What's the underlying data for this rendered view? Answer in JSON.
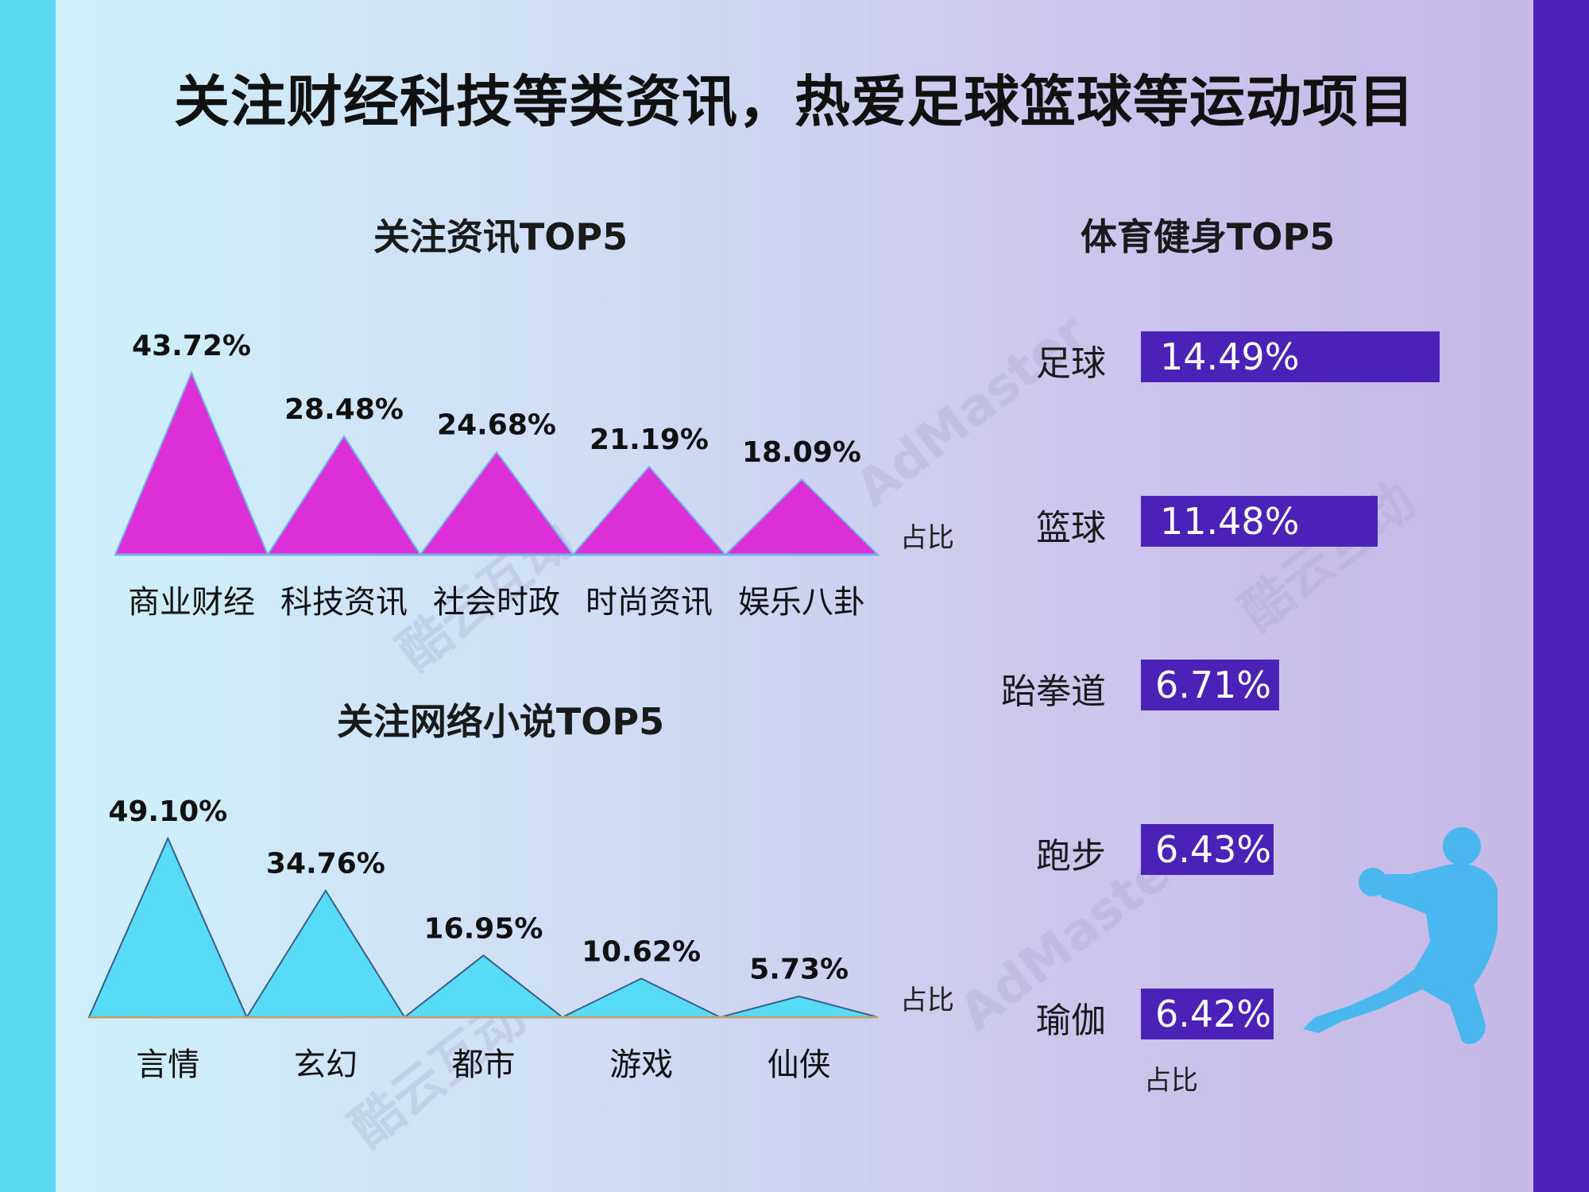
{
  "page": {
    "title": "关注财经科技等类资讯，热爱足球篮球等运动项目",
    "colors": {
      "news_fill": "#dd2fd8",
      "novel_fill": "#58dbf6",
      "sports_bar": "#4a22b8",
      "accent_left": "#5ad9f5",
      "accent_right": "#4a22b8"
    }
  },
  "watermarks": {
    "brand_cn": "酷云互动",
    "brand_en": "AdMaster"
  },
  "sports": {
    "title": "体育健身TOP5",
    "unit": "占比",
    "items": [
      {
        "label": "足球",
        "display": "14.49%",
        "value": 14.49
      },
      {
        "label": "篮球",
        "display": "11.48%",
        "value": 11.48
      },
      {
        "label": "跆拳道",
        "display": "6.71%",
        "value": 6.71
      },
      {
        "label": "跑步",
        "display": "6.43%",
        "value": 6.43
      },
      {
        "label": "瑜伽",
        "display": "6.42%",
        "value": 6.42
      }
    ]
  },
  "chart_data": [
    {
      "type": "bar",
      "title": "关注资讯TOP5",
      "unit_label": "占比",
      "categories": [
        "商业财经",
        "科技资讯",
        "社会时政",
        "时尚资讯",
        "娱乐八卦"
      ],
      "values": [
        43.72,
        28.48,
        24.68,
        21.19,
        18.09
      ],
      "value_labels": [
        "43.72%",
        "28.48%",
        "24.68%",
        "21.19%",
        "18.09%"
      ],
      "ylim": [
        0,
        50
      ]
    },
    {
      "type": "bar",
      "title": "关注网络小说TOP5",
      "unit_label": "占比",
      "categories": [
        "言情",
        "玄幻",
        "都市",
        "游戏",
        "仙侠"
      ],
      "values": [
        49.1,
        34.76,
        16.95,
        10.62,
        5.73
      ],
      "value_labels": [
        "49.10%",
        "34.76%",
        "16.95%",
        "10.62%",
        "5.73%"
      ],
      "ylim": [
        0,
        55
      ]
    },
    {
      "type": "bar",
      "title": "体育健身TOP5",
      "unit_label": "占比",
      "categories": [
        "足球",
        "篮球",
        "跆拳道",
        "跑步",
        "瑜伽"
      ],
      "values": [
        14.49,
        11.48,
        6.71,
        6.43,
        6.42
      ],
      "value_labels": [
        "14.49%",
        "11.48%",
        "6.71%",
        "6.43%",
        "6.42%"
      ],
      "ylim": [
        0,
        15
      ]
    }
  ]
}
